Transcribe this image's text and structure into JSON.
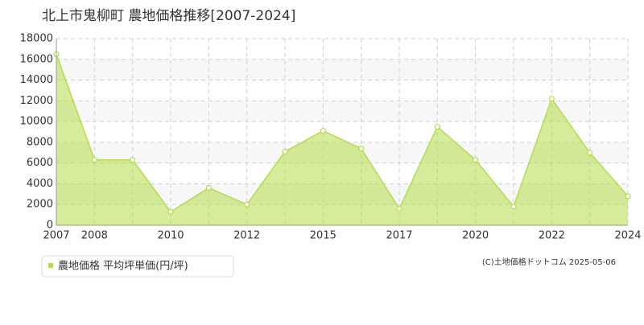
{
  "chart_data": {
    "type": "area",
    "title": "北上市鬼柳町 農地価格推移[2007-2024]",
    "categories": [
      "2007",
      "2008",
      null,
      "2010",
      null,
      "2012",
      null,
      "2015",
      null,
      "2017",
      null,
      "2020",
      null,
      "2022",
      null,
      "2024"
    ],
    "series": [
      {
        "name": "農地価格 平均坪単価(円/坪)",
        "color": "#b5dd48",
        "values": [
          16500,
          6300,
          6300,
          1300,
          3600,
          2000,
          7100,
          9100,
          7400,
          1600,
          9500,
          6300,
          1800,
          12200,
          7000,
          2800
        ]
      }
    ],
    "ylim": [
      0,
      18000
    ],
    "yticks": [
      0,
      2000,
      4000,
      6000,
      8000,
      10000,
      12000,
      14000,
      16000,
      18000
    ],
    "grid": true,
    "credit": "(C)土地価格ドットコム 2025-05-06"
  }
}
